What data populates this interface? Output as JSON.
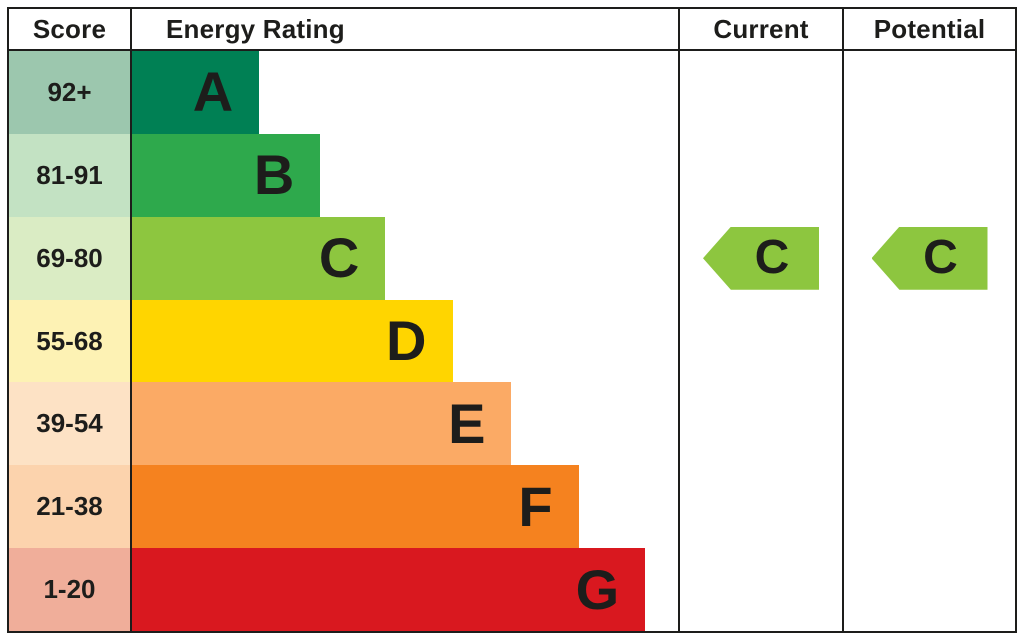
{
  "header": {
    "score": "Score",
    "energy_rating": "Energy Rating",
    "current": "Current",
    "potential": "Potential"
  },
  "chart_data": {
    "type": "bar",
    "orientation": "horizontal",
    "title": "Energy Rating",
    "columns": [
      "Score",
      "Energy Rating",
      "Current",
      "Potential"
    ],
    "categories": [
      "A",
      "B",
      "C",
      "D",
      "E",
      "F",
      "G"
    ],
    "bands": [
      {
        "letter": "A",
        "score": "92+",
        "color": "#008054",
        "score_bg": "#9cc7ae",
        "width_pct": 23.3
      },
      {
        "letter": "B",
        "score": "81-91",
        "color": "#2ea94c",
        "score_bg": "#c3e2c3",
        "width_pct": 34.5
      },
      {
        "letter": "C",
        "score": "69-80",
        "color": "#8dc63f",
        "score_bg": "#daecc4",
        "width_pct": 46.4
      },
      {
        "letter": "D",
        "score": "55-68",
        "color": "#ffd500",
        "score_bg": "#fdf2b4",
        "width_pct": 58.7
      },
      {
        "letter": "E",
        "score": "39-54",
        "color": "#fbaa65",
        "score_bg": "#fde2c5",
        "width_pct": 69.5
      },
      {
        "letter": "F",
        "score": "21-38",
        "color": "#f5821f",
        "score_bg": "#fcd3ad",
        "width_pct": 81.8
      },
      {
        "letter": "G",
        "score": "1-20",
        "color": "#d9181f",
        "score_bg": "#f0ae9a",
        "width_pct": 94.0
      }
    ],
    "current": {
      "label": "C",
      "band_index": 2,
      "color": "#8dc63f"
    },
    "potential": {
      "label": "C",
      "band_index": 2,
      "color": "#8dc63f"
    }
  }
}
